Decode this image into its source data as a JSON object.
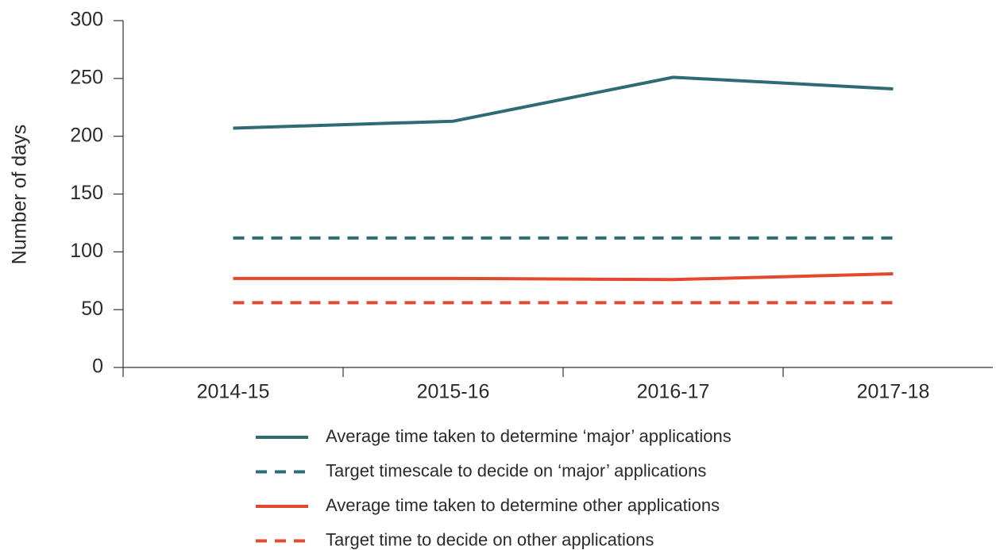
{
  "chart_data": {
    "type": "line",
    "y_label": "Number of days",
    "categories": [
      "2014-15",
      "2015-16",
      "2016-17",
      "2017-18"
    ],
    "series": [
      {
        "name": "Average time taken to determine ‘major’ applications",
        "color": "#2e6b73",
        "dashed": false,
        "values": [
          207,
          213,
          251,
          241
        ]
      },
      {
        "name": "Target timescale to decide on ‘major’ applications",
        "color": "#2e6b73",
        "dashed": true,
        "values": [
          112,
          112,
          112,
          112
        ]
      },
      {
        "name": "Average time taken to determine other applications",
        "color": "#e2492f",
        "dashed": false,
        "values": [
          77,
          77,
          76,
          81
        ]
      },
      {
        "name": "Target time to decide on other applications",
        "color": "#e2492f",
        "dashed": true,
        "values": [
          56,
          56,
          56,
          56
        ]
      }
    ],
    "ylim": [
      0,
      300
    ],
    "yticks": [
      0,
      50,
      100,
      150,
      200,
      250,
      300
    ],
    "grid": false
  }
}
